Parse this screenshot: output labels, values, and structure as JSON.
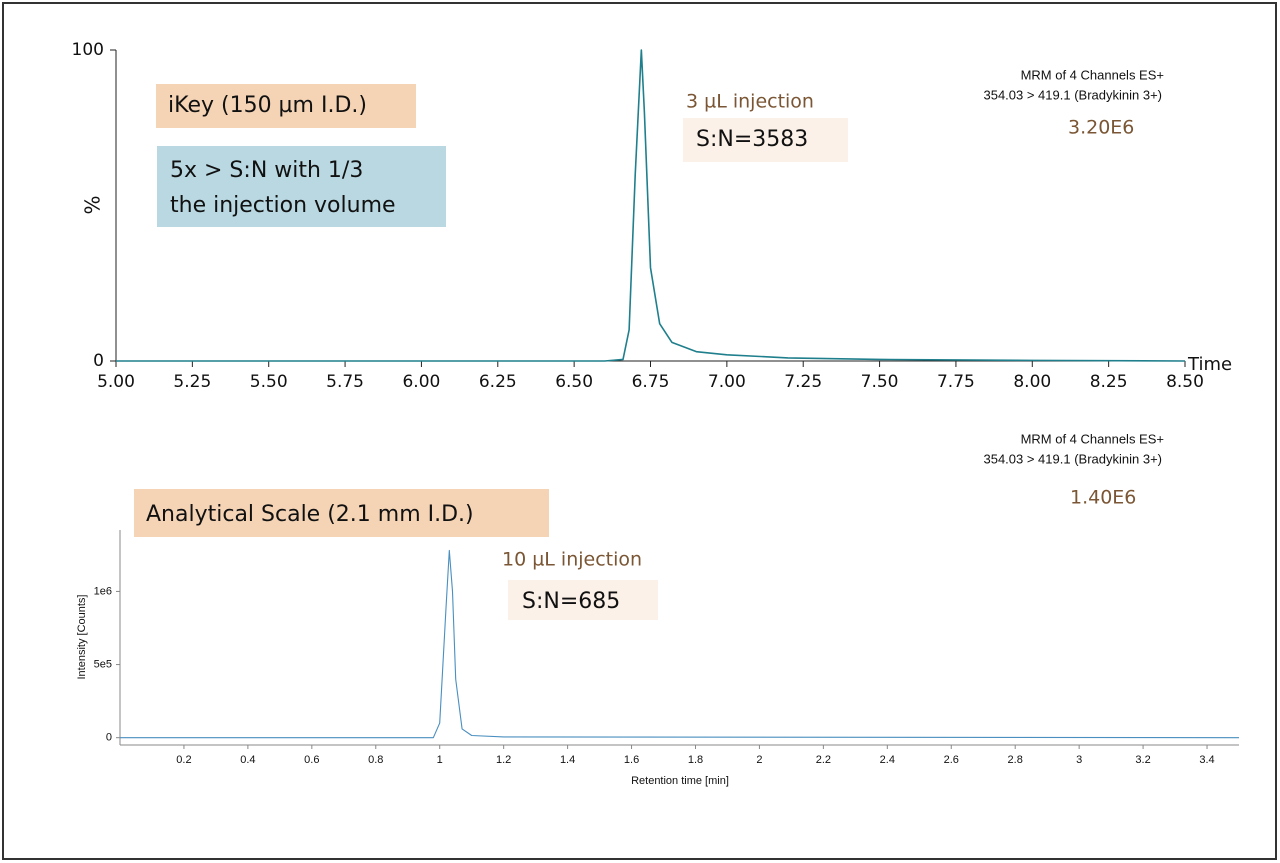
{
  "chart_data": [
    {
      "type": "line",
      "xlabel": "Time",
      "ylabel": "%",
      "x": [
        5.0,
        6.6,
        6.66,
        6.68,
        6.7,
        6.72,
        6.73,
        6.75,
        6.78,
        6.82,
        6.9,
        7.0,
        7.2,
        7.5,
        8.0,
        8.5
      ],
      "series": [
        {
          "color": "#1f7f8c",
          "values": [
            0,
            0,
            0.5,
            10,
            60,
            100,
            80,
            30,
            12,
            6,
            3,
            2,
            1,
            0.5,
            0.2,
            0
          ]
        }
      ],
      "xlim": [
        5,
        8.5
      ],
      "xticks": [
        {
          "value": 5,
          "label": "5.00"
        },
        {
          "value": 5.25,
          "label": "5.25"
        },
        {
          "value": 5.5,
          "label": "5.50"
        },
        {
          "value": 5.75,
          "label": "5.75"
        },
        {
          "value": 6,
          "label": "6.00"
        },
        {
          "value": 6.25,
          "label": "6.25"
        },
        {
          "value": 6.5,
          "label": "6.50"
        },
        {
          "value": 6.75,
          "label": "6.75"
        },
        {
          "value": 7,
          "label": "7.00"
        },
        {
          "value": 7.25,
          "label": "7.25"
        },
        {
          "value": 7.5,
          "label": "7.50"
        },
        {
          "value": 7.75,
          "label": "7.75"
        },
        {
          "value": 8,
          "label": "8.00"
        },
        {
          "value": 8.25,
          "label": "8.25"
        },
        {
          "value": 8.5,
          "label": "8.50"
        }
      ],
      "ylim": [
        0,
        100
      ],
      "yticks": [
        0,
        100
      ],
      "annotations": [
        "iKey (150 µm I.D.)",
        "5x > S:N with 1/3",
        "the injection volume",
        "3 µL injection",
        "S:N=3583",
        "MRM of 4 Channels ES+",
        "354.03 > 419.1 (Bradykinin 3+)",
        "3.20E6"
      ]
    },
    {
      "type": "line",
      "xlabel": "Retention time [min]",
      "ylabel": "Intensity [Counts]",
      "x": [
        0,
        0.98,
        1.0,
        1.02,
        1.03,
        1.04,
        1.05,
        1.07,
        1.1,
        1.2,
        3.5
      ],
      "series": [
        {
          "color": "#4a8fbf",
          "values": [
            0,
            0,
            100000,
            900000,
            1280000,
            1000000,
            400000,
            60000,
            15000,
            5000,
            0
          ]
        }
      ],
      "xlim": [
        0,
        3.5
      ],
      "xticks": [
        0.2,
        0.4,
        0.6,
        0.8,
        1,
        1.2,
        1.4,
        1.6,
        1.8,
        2,
        2.2,
        2.4,
        2.6,
        2.8,
        3,
        3.2,
        3.4
      ],
      "ylim": [
        -50000,
        1420000
      ],
      "yticks": [
        0,
        {
          "value": 500000,
          "label": "5e5"
        },
        {
          "value": 1000000,
          "label": "1e6"
        }
      ],
      "annotations": [
        "Analytical Scale (2.1 mm I.D.)",
        "10 µL injection",
        "S:N=685",
        "MRM of 4 Channels ES+",
        "354.03 > 419.1 (Bradykinin 3+)",
        "1.40E6"
      ]
    }
  ]
}
